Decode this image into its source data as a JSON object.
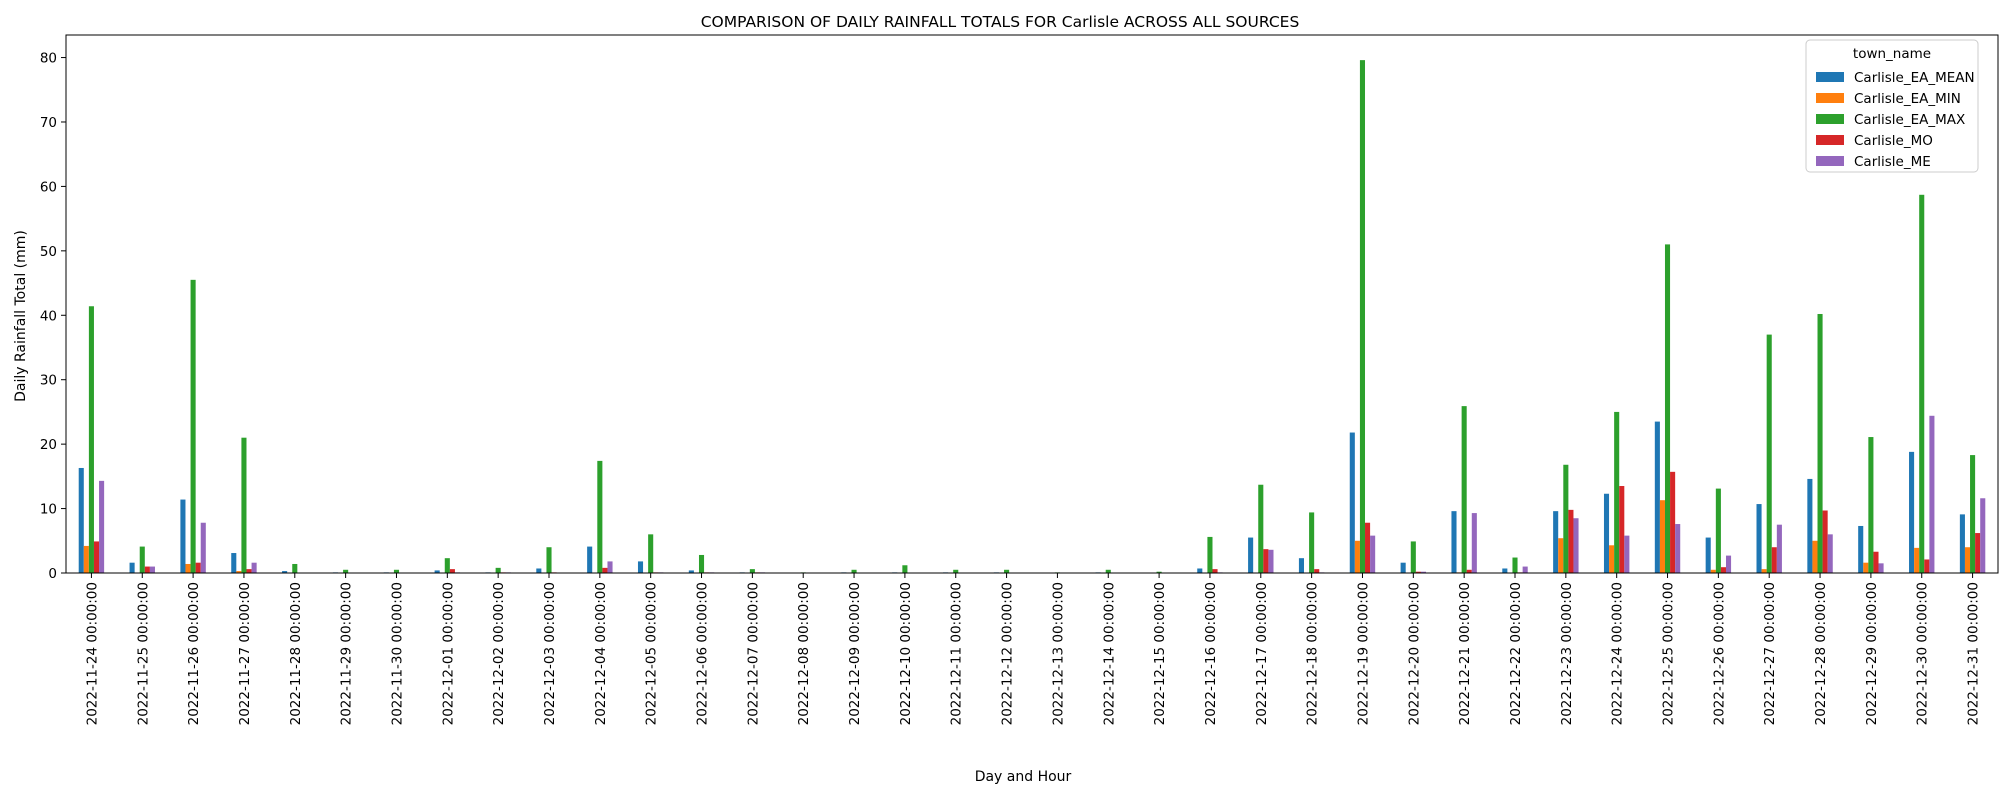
{
  "chart_data": {
    "type": "bar",
    "title": "COMPARISON OF DAILY RAINFALL TOTALS FOR Carlisle ACROSS ALL SOURCES",
    "xlabel": "Day and Hour",
    "ylabel": "Daily Rainfall Total (mm)",
    "ylim": [
      0,
      83.5
    ],
    "yticks": [
      0,
      10,
      20,
      30,
      40,
      50,
      60,
      70,
      80
    ],
    "grid": false,
    "legend_title": "town_name",
    "legend_position": "top-right",
    "categories": [
      "2022-11-24 00:00:00",
      "2022-11-25 00:00:00",
      "2022-11-26 00:00:00",
      "2022-11-27 00:00:00",
      "2022-11-28 00:00:00",
      "2022-11-29 00:00:00",
      "2022-11-30 00:00:00",
      "2022-12-01 00:00:00",
      "2022-12-02 00:00:00",
      "2022-12-03 00:00:00",
      "2022-12-04 00:00:00",
      "2022-12-05 00:00:00",
      "2022-12-06 00:00:00",
      "2022-12-07 00:00:00",
      "2022-12-08 00:00:00",
      "2022-12-09 00:00:00",
      "2022-12-10 00:00:00",
      "2022-12-11 00:00:00",
      "2022-12-12 00:00:00",
      "2022-12-13 00:00:00",
      "2022-12-14 00:00:00",
      "2022-12-15 00:00:00",
      "2022-12-16 00:00:00",
      "2022-12-17 00:00:00",
      "2022-12-18 00:00:00",
      "2022-12-19 00:00:00",
      "2022-12-20 00:00:00",
      "2022-12-21 00:00:00",
      "2022-12-22 00:00:00",
      "2022-12-23 00:00:00",
      "2022-12-24 00:00:00",
      "2022-12-25 00:00:00",
      "2022-12-26 00:00:00",
      "2022-12-27 00:00:00",
      "2022-12-28 00:00:00",
      "2022-12-29 00:00:00",
      "2022-12-30 00:00:00",
      "2022-12-31 00:00:00"
    ],
    "series": [
      {
        "name": "Carlisle_EA_MEAN",
        "color": "#1f77b4",
        "values": [
          16.3,
          1.6,
          11.4,
          3.1,
          0.3,
          0.1,
          0.1,
          0.4,
          0.1,
          0.7,
          4.1,
          1.8,
          0.4,
          0.1,
          0.0,
          0.1,
          0.1,
          0.1,
          0.1,
          0.0,
          0.1,
          0.0,
          0.7,
          5.5,
          2.3,
          21.8,
          1.6,
          9.6,
          0.7,
          9.6,
          12.3,
          23.5,
          5.5,
          10.7,
          14.6,
          7.3,
          18.8,
          9.1
        ]
      },
      {
        "name": "Carlisle_EA_MIN",
        "color": "#ff7f0e",
        "values": [
          4.2,
          0.0,
          1.4,
          0.3,
          0.0,
          0.0,
          0.0,
          0.0,
          0.0,
          0.0,
          0.0,
          0.0,
          0.0,
          0.0,
          0.0,
          0.0,
          0.0,
          0.0,
          0.0,
          0.0,
          0.0,
          0.0,
          0.0,
          0.0,
          0.0,
          5.0,
          0.0,
          0.1,
          0.0,
          5.4,
          4.3,
          11.3,
          0.5,
          0.6,
          5.0,
          1.6,
          3.9,
          4.0
        ]
      },
      {
        "name": "Carlisle_EA_MAX",
        "color": "#2ca02c",
        "values": [
          41.4,
          4.1,
          45.5,
          21.0,
          1.4,
          0.5,
          0.5,
          2.3,
          0.8,
          4.0,
          17.4,
          6.0,
          2.8,
          0.6,
          0.1,
          0.5,
          1.2,
          0.5,
          0.5,
          0.1,
          0.5,
          0.2,
          5.6,
          13.7,
          9.4,
          79.6,
          4.9,
          25.9,
          2.4,
          16.8,
          25.0,
          51.0,
          13.1,
          37.0,
          40.2,
          21.1,
          58.7,
          18.3
        ]
      },
      {
        "name": "Carlisle_MO",
        "color": "#d62728",
        "values": [
          4.9,
          1.0,
          1.6,
          0.6,
          0.0,
          0.0,
          0.0,
          0.6,
          0.1,
          0.1,
          0.8,
          0.1,
          0.1,
          0.1,
          0.0,
          0.0,
          0.0,
          0.0,
          0.0,
          0.0,
          0.0,
          0.0,
          0.6,
          3.7,
          0.6,
          7.8,
          0.2,
          0.5,
          0.1,
          9.8,
          13.5,
          15.7,
          0.9,
          4.0,
          9.7,
          3.3,
          2.1,
          6.2
        ]
      },
      {
        "name": "Carlisle_ME",
        "color": "#9467bd",
        "values": [
          14.3,
          1.0,
          7.8,
          1.6,
          0.0,
          0.0,
          0.0,
          0.1,
          0.1,
          0.0,
          1.8,
          0.1,
          0.1,
          0.1,
          0.0,
          0.0,
          0.0,
          0.0,
          0.0,
          0.0,
          0.0,
          0.0,
          0.1,
          3.6,
          0.1,
          5.8,
          0.2,
          9.3,
          1.0,
          8.5,
          5.8,
          7.6,
          2.7,
          7.5,
          6.0,
          1.5,
          24.4,
          11.6
        ]
      }
    ]
  }
}
